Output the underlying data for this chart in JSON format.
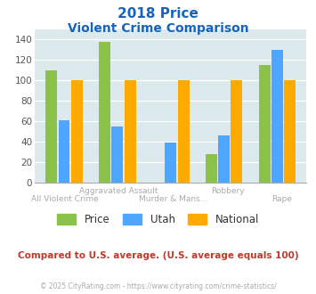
{
  "title_line1": "2018 Price",
  "title_line2": "Violent Crime Comparison",
  "categories": [
    "All Violent Crime",
    "Aggravated Assault",
    "Murder & Mans...",
    "Robbery",
    "Rape"
  ],
  "series": {
    "Price": [
      110,
      138,
      0,
      28,
      115
    ],
    "Utah": [
      61,
      55,
      39,
      46,
      130
    ],
    "National": [
      100,
      100,
      100,
      100,
      100
    ]
  },
  "colors": {
    "Price": "#8bc34a",
    "Utah": "#4da6ff",
    "National": "#ffaa00"
  },
  "ylim": [
    0,
    150
  ],
  "yticks": [
    0,
    20,
    40,
    60,
    80,
    100,
    120,
    140
  ],
  "plot_bg": "#dce9ed",
  "title_color": "#1565c0",
  "xlabel_top_color": "#aaaaaa",
  "xlabel_bot_color": "#aaaaaa",
  "note_text": "Compared to U.S. average. (U.S. average equals 100)",
  "note_color": "#c0392b",
  "footer_text": "© 2025 CityRating.com - https://www.cityrating.com/crime-statistics/",
  "footer_color": "#aaaaaa",
  "legend_labels": [
    "Price",
    "Utah",
    "National"
  ],
  "xtick_top": [
    "",
    "Aggravated Assault",
    "",
    "Robbery",
    ""
  ],
  "xtick_bottom": [
    "All Violent Crime",
    "",
    "Murder & Mans...",
    "",
    "Rape"
  ]
}
